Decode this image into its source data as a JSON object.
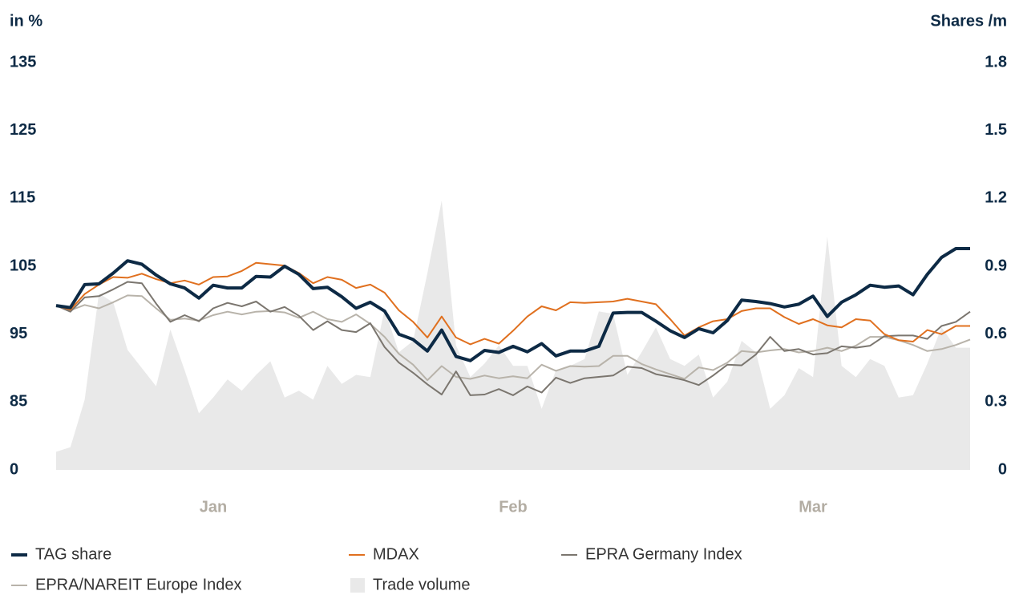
{
  "chart_data": {
    "type": "line",
    "ylabel": "in %",
    "y2label": "Shares /m",
    "categories": [
      null,
      null,
      null,
      null,
      null,
      null,
      null,
      null,
      null,
      null,
      null,
      "Jan",
      null,
      null,
      null,
      null,
      null,
      null,
      null,
      null,
      null,
      null,
      null,
      null,
      null,
      null,
      null,
      null,
      null,
      null,
      null,
      null,
      "Feb",
      null,
      null,
      null,
      null,
      null,
      null,
      null,
      null,
      null,
      null,
      null,
      null,
      null,
      null,
      null,
      null,
      null,
      null,
      null,
      null,
      "Mar",
      null,
      null,
      null,
      null,
      null,
      null,
      null,
      null,
      null,
      null,
      null
    ],
    "ylim": [
      0,
      135
    ],
    "yticks": [
      0,
      85,
      95,
      105,
      115,
      125,
      135
    ],
    "y2lim": [
      0,
      1.8
    ],
    "y2ticks": [
      0,
      0.3,
      0.6,
      0.9,
      1.2,
      1.5,
      1.8
    ],
    "grid": false,
    "series": [
      {
        "name": "TAG share",
        "color": "#0d2a45",
        "values": [
          99.2,
          98.9,
          102.3,
          102.4,
          104,
          105.8,
          105.3,
          103.7,
          102.4,
          101.8,
          100.3,
          102.2,
          101.8,
          101.8,
          103.5,
          103.4,
          105,
          103.8,
          101.7,
          101.9,
          100.5,
          98.8,
          99.7,
          98.4,
          95,
          94.2,
          92.5,
          95.6,
          91.7,
          91.1,
          92.6,
          92.3,
          93.2,
          92.4,
          93.6,
          91.8,
          92.5,
          92.5,
          93.2,
          98.1,
          98.2,
          98.2,
          96.9,
          95.5,
          94.5,
          95.8,
          95.2,
          97,
          100,
          99.8,
          99.5,
          99,
          99.4,
          100.6,
          97.6,
          99.7,
          100.8,
          102.2,
          101.9,
          102.1,
          100.8,
          103.8,
          106.3,
          107.6,
          107.6
        ]
      },
      {
        "name": "MDAX",
        "color": "#e0701f",
        "values": [
          99.2,
          98.6,
          100.9,
          102.3,
          103.4,
          103.3,
          103.9,
          103.1,
          102.5,
          102.9,
          102.3,
          103.4,
          103.5,
          104.3,
          105.5,
          105.3,
          105.1,
          104,
          102.5,
          103.4,
          103,
          101.8,
          102.3,
          101.1,
          98.5,
          96.8,
          94.5,
          97.6,
          94.5,
          93.5,
          94.3,
          93.6,
          95.5,
          97.6,
          99.1,
          98.5,
          99.7,
          99.6,
          99.7,
          99.8,
          100.2,
          99.8,
          99.4,
          97.2,
          94.8,
          96,
          96.9,
          97.2,
          98.4,
          98.8,
          98.8,
          97.5,
          96.5,
          97.2,
          96.3,
          96,
          97.2,
          97,
          95,
          94.1,
          93.9,
          95.6,
          95,
          96.2,
          96.2
        ]
      },
      {
        "name": "EPRA Germany Index",
        "color": "#7b766f",
        "values": [
          99.2,
          98.3,
          100.4,
          100.6,
          101.6,
          102.7,
          102.5,
          99.5,
          96.8,
          97.8,
          96.9,
          98.8,
          99.6,
          99.1,
          99.8,
          98.3,
          99,
          97.7,
          95.6,
          96.9,
          95.6,
          95.3,
          96.6,
          93.1,
          90.8,
          89.3,
          87.6,
          86.1,
          89.5,
          86,
          86.1,
          86.9,
          86,
          87.3,
          86.4,
          88.6,
          87.8,
          88.5,
          88.7,
          88.9,
          90.2,
          90,
          89.1,
          88.7,
          88.2,
          87.5,
          88.9,
          90.5,
          90.4,
          92,
          94.6,
          92.5,
          92.8,
          92,
          92.2,
          93.2,
          93,
          93.3,
          94.7,
          94.8,
          94.8,
          94.3,
          96.2,
          96.8,
          98.3
        ]
      },
      {
        "name": "EPRA/NAREIT Europe Index",
        "color": "#b8b3aa",
        "values": [
          99.2,
          98.5,
          99.3,
          98.8,
          99.7,
          100.7,
          100.6,
          98.8,
          97.1,
          97.3,
          97,
          97.8,
          98.3,
          97.9,
          98.3,
          98.4,
          98.2,
          97.4,
          98.3,
          97.2,
          96.8,
          97.9,
          96.5,
          94.6,
          92.1,
          90.5,
          88.2,
          90.3,
          88.7,
          88.4,
          88.9,
          88.5,
          88.8,
          88.5,
          90.5,
          89.6,
          90.3,
          90.2,
          90.3,
          91.8,
          91.8,
          90.6,
          89.8,
          89.1,
          88.4,
          90.1,
          89.7,
          90.8,
          92.5,
          92.3,
          92.6,
          92.8,
          92.3,
          92.5,
          93,
          92.5,
          93.3,
          94.6,
          94.6,
          94.1,
          93.4,
          92.5,
          92.8,
          93.4,
          94.2
        ]
      },
      {
        "name": "Trade volume",
        "color": "#e9e9e9",
        "type": "area",
        "axis": "y2",
        "values": [
          0.08,
          0.1,
          0.31,
          0.78,
          0.74,
          0.53,
          0.45,
          0.37,
          0.62,
          0.44,
          0.25,
          0.32,
          0.4,
          0.35,
          0.42,
          0.48,
          0.32,
          0.35,
          0.31,
          0.46,
          0.38,
          0.42,
          0.41,
          0.71,
          0.52,
          0.57,
          0.87,
          1.19,
          0.55,
          0.41,
          0.47,
          0.55,
          0.46,
          0.46,
          0.27,
          0.44,
          0.46,
          0.49,
          0.7,
          0.69,
          0.42,
          0.52,
          0.63,
          0.49,
          0.46,
          0.51,
          0.32,
          0.39,
          0.57,
          0.52,
          0.27,
          0.33,
          0.45,
          0.41,
          1.03,
          0.46,
          0.41,
          0.49,
          0.46,
          0.32,
          0.33,
          0.47,
          0.63,
          0.54,
          0.54
        ]
      }
    ]
  }
}
